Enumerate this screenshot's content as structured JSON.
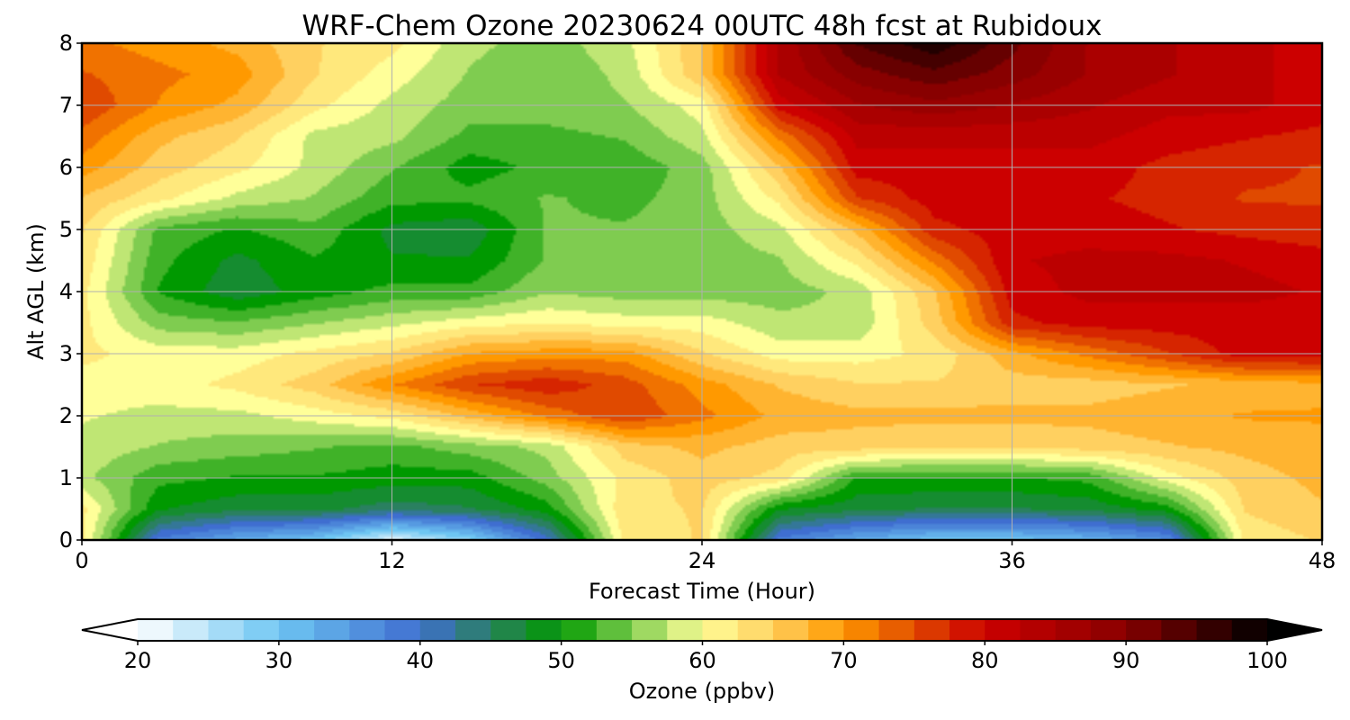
{
  "chart_data": {
    "type": "heatmap",
    "title": "WRF-Chem Ozone  20230624 00UTC 48h fcst at Rubidoux",
    "xlabel": "Forecast Time (Hour)",
    "ylabel": "Alt AGL (km)",
    "xlim": [
      0,
      48
    ],
    "ylim": [
      0,
      8
    ],
    "xticks": [
      0,
      12,
      24,
      36,
      48
    ],
    "yticks": [
      0,
      1,
      2,
      3,
      4,
      5,
      6,
      7,
      8
    ],
    "grid": true,
    "colorbar": {
      "label": "Ozone  (ppbv)",
      "min": 20,
      "max": 100,
      "ticks": [
        20,
        30,
        40,
        50,
        60,
        70,
        80,
        90,
        100
      ],
      "extend": "both",
      "color_stops": [
        {
          "v": 20,
          "c": "#ffffff"
        },
        {
          "v": 30,
          "c": "#6ec6f2"
        },
        {
          "v": 40,
          "c": "#3f6ed0"
        },
        {
          "v": 45,
          "c": "#2a8060"
        },
        {
          "v": 50,
          "c": "#009900"
        },
        {
          "v": 55,
          "c": "#7fcc50"
        },
        {
          "v": 60,
          "c": "#ffff99"
        },
        {
          "v": 65,
          "c": "#ffd060"
        },
        {
          "v": 70,
          "c": "#ff9900"
        },
        {
          "v": 75,
          "c": "#e04a00"
        },
        {
          "v": 80,
          "c": "#cc0000"
        },
        {
          "v": 90,
          "c": "#880000"
        },
        {
          "v": 100,
          "c": "#000000"
        }
      ]
    },
    "x": [
      0,
      3,
      6,
      9,
      12,
      15,
      18,
      21,
      24,
      27,
      30,
      33,
      36,
      39,
      42,
      45,
      48
    ],
    "y": [
      0,
      0.5,
      1,
      1.5,
      2,
      2.5,
      3,
      3.5,
      4,
      4.5,
      5,
      5.5,
      6,
      6.5,
      7,
      7.5,
      8
    ],
    "z": [
      [
        62,
        38,
        33,
        30,
        22,
        28,
        40,
        62,
        64,
        38,
        33,
        30,
        30,
        32,
        36,
        62,
        64
      ],
      [
        62,
        49,
        47,
        47,
        45,
        46,
        50,
        63,
        64,
        49,
        47,
        46,
        46,
        47,
        50,
        64,
        66
      ],
      [
        57,
        52,
        51,
        51,
        50,
        50,
        55,
        62,
        65,
        63,
        51,
        51,
        51,
        52,
        60,
        65,
        67
      ],
      [
        58,
        56,
        55,
        54,
        53,
        55,
        57,
        65,
        67,
        65,
        65,
        64,
        64,
        65,
        66,
        67,
        68
      ],
      [
        59,
        58,
        58,
        60,
        62,
        67,
        72,
        76,
        72,
        68,
        67,
        67,
        67,
        67,
        68,
        69,
        69
      ],
      [
        60,
        60,
        62,
        65,
        71,
        76,
        78,
        75,
        70,
        66,
        64,
        64,
        65,
        65,
        66,
        67,
        68
      ],
      [
        62,
        60,
        60,
        62,
        64,
        69,
        70,
        70,
        64,
        60,
        60,
        62,
        68,
        72,
        76,
        80,
        80
      ],
      [
        62,
        55,
        54,
        56,
        58,
        60,
        61,
        60,
        60,
        57,
        57,
        65,
        78,
        80,
        80,
        80,
        80
      ],
      [
        62,
        51,
        47,
        50,
        52,
        52,
        56,
        55,
        55,
        55,
        57,
        66,
        80,
        82,
        82,
        82,
        81
      ],
      [
        63,
        52,
        48,
        51,
        49,
        49,
        54,
        55,
        55,
        56,
        62,
        72,
        81,
        82,
        82,
        81,
        80
      ],
      [
        64,
        53,
        51,
        53,
        48,
        47,
        54,
        54,
        55,
        58,
        67,
        78,
        80,
        80,
        79,
        78,
        77
      ],
      [
        66,
        62,
        58,
        56,
        52,
        52,
        54,
        53,
        55,
        62,
        76,
        80,
        80,
        79,
        78,
        76,
        76
      ],
      [
        70,
        65,
        62,
        58,
        54,
        50,
        52,
        52,
        55,
        66,
        80,
        80,
        80,
        80,
        78,
        77,
        76
      ],
      [
        73,
        67,
        64,
        58,
        57,
        53,
        53,
        54,
        58,
        72,
        82,
        82,
        82,
        82,
        80,
        79,
        78
      ],
      [
        76,
        71,
        68,
        62,
        58,
        55,
        55,
        56,
        60,
        80,
        86,
        88,
        86,
        84,
        82,
        82,
        80
      ],
      [
        74,
        72,
        70,
        64,
        60,
        56,
        54,
        57,
        66,
        84,
        90,
        93,
        90,
        86,
        84,
        82,
        80
      ],
      [
        72,
        70,
        68,
        64,
        62,
        57,
        55,
        58,
        66,
        84,
        94,
        98,
        92,
        86,
        84,
        82,
        80
      ]
    ]
  }
}
